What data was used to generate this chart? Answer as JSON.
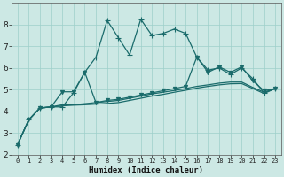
{
  "xlabel": "Humidex (Indice chaleur)",
  "ylabel": "",
  "bg_color": "#cce8e4",
  "line_color": "#1a6b6b",
  "grid_color": "#9ecfca",
  "xlim": [
    -0.5,
    23.5
  ],
  "ylim": [
    2,
    9
  ],
  "xticks": [
    0,
    1,
    2,
    3,
    4,
    5,
    6,
    7,
    8,
    9,
    10,
    11,
    12,
    13,
    14,
    15,
    16,
    17,
    18,
    19,
    20,
    21,
    22,
    23
  ],
  "yticks": [
    2,
    3,
    4,
    5,
    6,
    7,
    8
  ],
  "lines": [
    {
      "x": [
        0,
        1,
        2,
        3,
        4,
        5,
        6,
        7,
        8,
        9,
        10,
        11,
        12,
        13,
        14,
        15,
        16,
        17,
        18,
        19,
        20,
        21,
        22,
        23
      ],
      "y": [
        2.45,
        3.6,
        4.15,
        4.2,
        4.2,
        4.85,
        5.8,
        6.5,
        8.2,
        7.4,
        6.6,
        8.25,
        7.5,
        7.6,
        7.8,
        7.6,
        6.5,
        5.9,
        6.0,
        5.7,
        6.0,
        5.5,
        4.85,
        5.05
      ],
      "marker": "+",
      "markersize": 4,
      "lw": 0.9
    },
    {
      "x": [
        0,
        1,
        2,
        3,
        4,
        5,
        6,
        7,
        8,
        9,
        10,
        11,
        12,
        13,
        14,
        15,
        16,
        17,
        18,
        19,
        20,
        21,
        22,
        23
      ],
      "y": [
        2.45,
        3.6,
        4.15,
        4.2,
        4.3,
        4.3,
        4.35,
        4.4,
        4.45,
        4.5,
        4.6,
        4.7,
        4.8,
        4.88,
        4.96,
        5.05,
        5.15,
        5.22,
        5.3,
        5.35,
        5.35,
        5.1,
        4.88,
        5.05
      ],
      "marker": null,
      "lw": 0.9
    },
    {
      "x": [
        0,
        1,
        2,
        3,
        4,
        5,
        6,
        7,
        8,
        9,
        10,
        11,
        12,
        13,
        14,
        15,
        16,
        17,
        18,
        19,
        20,
        21,
        22,
        23
      ],
      "y": [
        2.45,
        3.6,
        4.15,
        4.2,
        4.25,
        4.28,
        4.3,
        4.33,
        4.36,
        4.4,
        4.5,
        4.6,
        4.7,
        4.78,
        4.88,
        4.97,
        5.07,
        5.15,
        5.22,
        5.27,
        5.28,
        5.05,
        4.82,
        5.05
      ],
      "marker": null,
      "lw": 0.9
    },
    {
      "x": [
        0,
        1,
        2,
        3,
        4,
        5,
        6,
        7,
        8,
        9,
        10,
        11,
        12,
        13,
        14,
        15,
        16,
        17,
        18,
        19,
        20,
        21,
        22,
        23
      ],
      "y": [
        2.45,
        3.6,
        4.15,
        4.2,
        4.9,
        4.9,
        5.8,
        4.4,
        4.5,
        4.55,
        4.65,
        4.75,
        4.85,
        4.95,
        5.05,
        5.15,
        6.5,
        5.8,
        6.05,
        5.8,
        6.05,
        5.4,
        4.95,
        5.05
      ],
      "marker": "v",
      "markersize": 3,
      "lw": 0.9
    }
  ]
}
